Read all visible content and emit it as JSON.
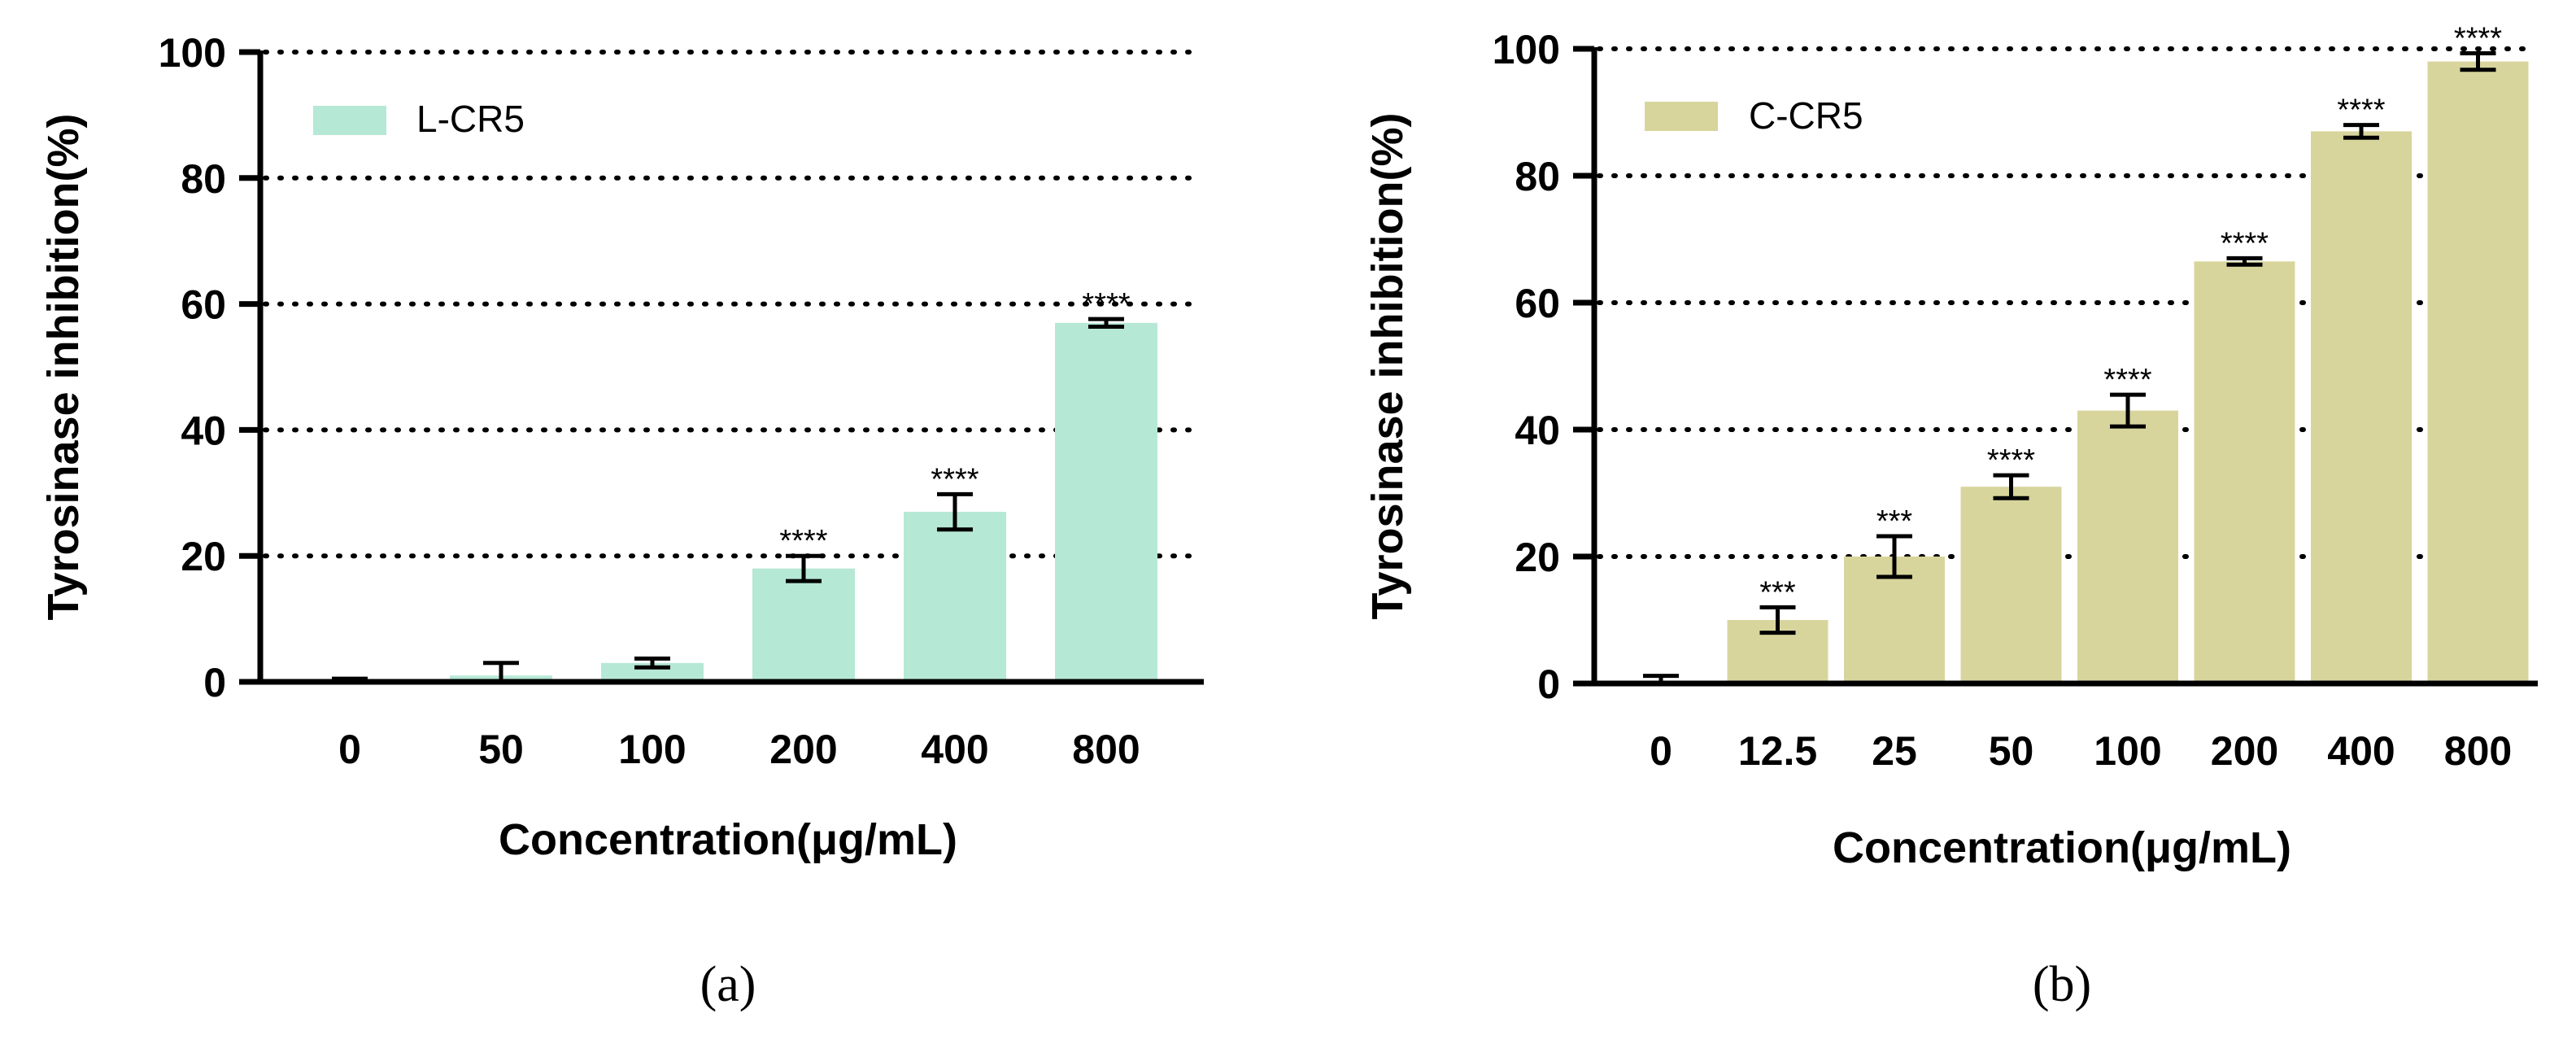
{
  "chart_data": [
    {
      "type": "bar",
      "panel_label": "(a)",
      "xlabel": "Concentration(μg/mL)",
      "ylabel": "Tyrosinase inhibition(%)",
      "ylim": [
        0,
        100
      ],
      "yticks": [
        "0",
        "20",
        "40",
        "60",
        "80",
        "100"
      ],
      "grid": "horizontal dotted",
      "legend_position": "top-left",
      "categories": [
        "0",
        "50",
        "100",
        "200",
        "400",
        "800"
      ],
      "series": [
        {
          "name": "L-CR5",
          "color": "#b6e8d6",
          "values": [
            0,
            1,
            3,
            18,
            27,
            57
          ],
          "errors": [
            0.5,
            2,
            0.7,
            2,
            2.8,
            0.6
          ],
          "significance": [
            "",
            "",
            "",
            "****",
            "****",
            "****"
          ]
        }
      ]
    },
    {
      "type": "bar",
      "panel_label": "(b)",
      "xlabel": "Concentration(μg/mL)",
      "ylabel": "Tyrosinase inhibition(%)",
      "ylim": [
        0,
        100
      ],
      "yticks": [
        "0",
        "20",
        "40",
        "60",
        "80",
        "100"
      ],
      "grid": "horizontal dotted",
      "legend_position": "top-left",
      "categories": [
        "0",
        "12.5",
        "25",
        "50",
        "100",
        "200",
        "400",
        "800"
      ],
      "series": [
        {
          "name": "C-CR5",
          "color": "#d8d59c",
          "values": [
            0,
            10,
            20,
            31,
            43,
            66.5,
            87,
            98
          ],
          "errors": [
            1.2,
            2,
            3.2,
            1.8,
            2.5,
            0.5,
            1,
            1.3
          ],
          "significance": [
            "",
            "***",
            "***",
            "****",
            "****",
            "****",
            "****",
            "****"
          ]
        }
      ]
    }
  ]
}
